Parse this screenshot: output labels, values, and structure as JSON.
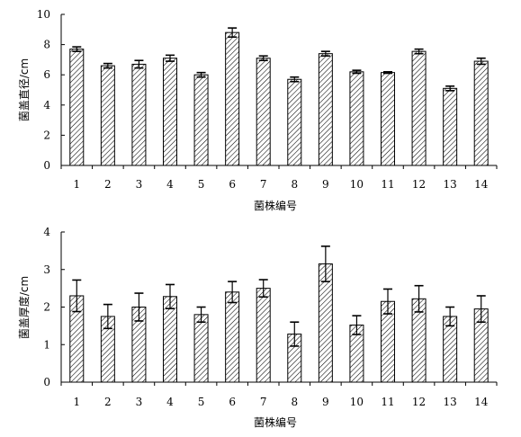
{
  "chart_data": [
    {
      "type": "bar",
      "xlabel": "菌株编号",
      "ylabel": "菌盖直径/cm",
      "ylim": [
        0,
        10
      ],
      "yticks": [
        "0",
        "2",
        "4",
        "6",
        "8",
        "10"
      ],
      "categories": [
        "1",
        "2",
        "3",
        "4",
        "5",
        "6",
        "7",
        "8",
        "9",
        "10",
        "11",
        "12",
        "13",
        "14"
      ],
      "values": [
        7.7,
        6.6,
        6.7,
        7.1,
        6.0,
        8.8,
        7.1,
        5.7,
        7.4,
        6.2,
        6.15,
        7.55,
        5.1,
        6.9
      ],
      "errors": [
        0.15,
        0.15,
        0.25,
        0.2,
        0.15,
        0.3,
        0.15,
        0.15,
        0.15,
        0.1,
        0.05,
        0.15,
        0.15,
        0.2
      ],
      "pattern": "diagonal-hatch",
      "grid": false
    },
    {
      "type": "bar",
      "xlabel": "菌株编号",
      "ylabel": "菌盖厚度/cm",
      "ylim": [
        0,
        4
      ],
      "yticks": [
        "0",
        "1",
        "2",
        "3",
        "4"
      ],
      "categories": [
        "1",
        "2",
        "3",
        "4",
        "5",
        "6",
        "7",
        "8",
        "9",
        "10",
        "11",
        "12",
        "13",
        "14"
      ],
      "values": [
        2.3,
        1.75,
        2.0,
        2.28,
        1.8,
        2.4,
        2.5,
        1.28,
        3.15,
        1.52,
        2.15,
        2.22,
        1.75,
        1.95
      ],
      "errors": [
        0.42,
        0.32,
        0.37,
        0.32,
        0.2,
        0.28,
        0.23,
        0.32,
        0.47,
        0.25,
        0.33,
        0.35,
        0.25,
        0.35
      ],
      "pattern": "diagonal-hatch",
      "grid": false
    }
  ]
}
